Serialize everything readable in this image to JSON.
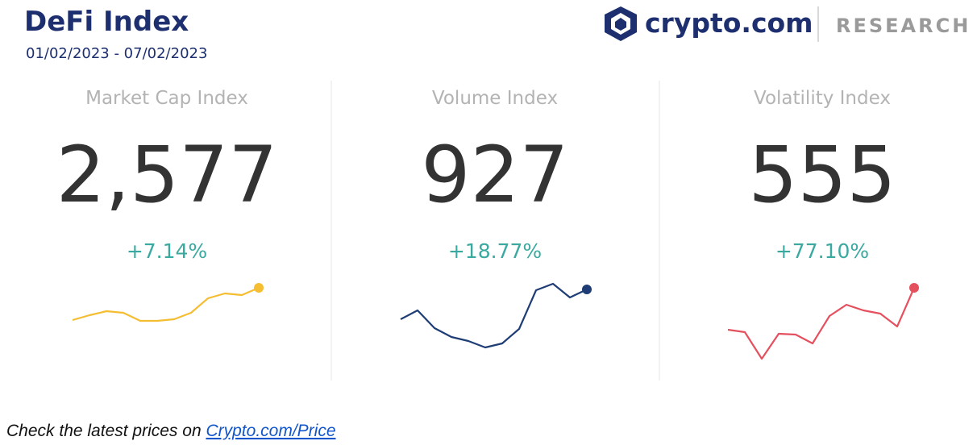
{
  "header": {
    "title": "DeFi Index",
    "date_range": "01/02/2023 - 07/02/2023",
    "brand": "crypto.com",
    "brand_section": "RESEARCH"
  },
  "indices": [
    {
      "name": "Market Cap Index",
      "value": "2,577",
      "change": "+7.14%",
      "color": "#f5bd32",
      "sparkline": [
        63,
        69,
        74,
        72,
        62,
        62,
        64,
        72,
        90,
        96,
        94,
        103
      ]
    },
    {
      "name": "Volume Index",
      "value": "927",
      "change": "+18.77%",
      "color": "#1f3d75",
      "sparkline": [
        64,
        75,
        53,
        42,
        37,
        29,
        34,
        52,
        100,
        108,
        91,
        101
      ]
    },
    {
      "name": "Volatility Index",
      "value": "555",
      "change": "+77.10%",
      "color": "#e5505f",
      "sparkline": [
        51,
        48,
        15,
        46,
        45,
        34,
        68,
        82,
        75,
        71,
        55,
        103
      ]
    }
  ],
  "footer": {
    "text": "Check the latest prices on",
    "link": "Crypto.com/Price"
  }
}
